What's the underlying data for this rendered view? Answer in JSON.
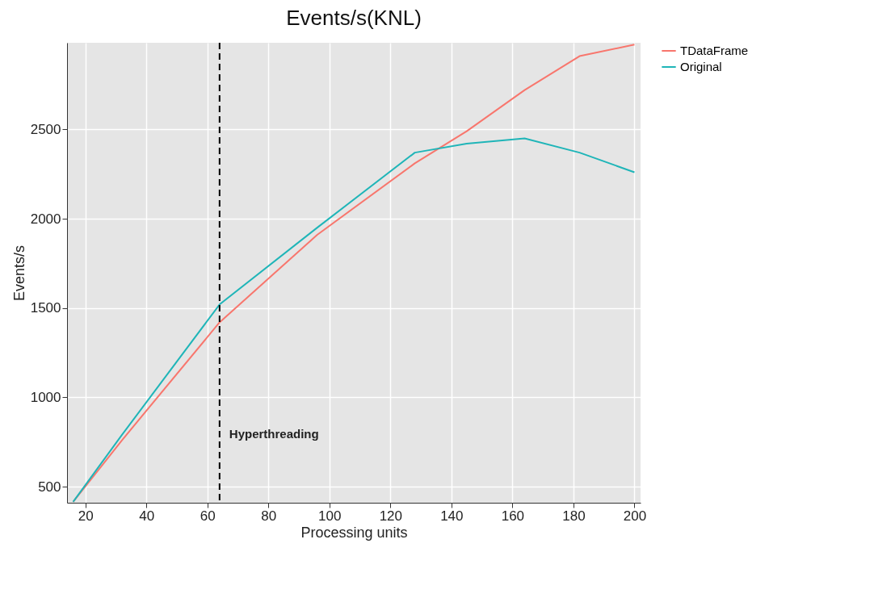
{
  "chart_data": {
    "type": "line",
    "title": "Events/s(KNL)",
    "xlabel": "Processing units",
    "ylabel": "Events/s",
    "x": [
      16,
      32,
      64,
      96,
      128,
      145,
      164,
      182,
      200
    ],
    "series": [
      {
        "name": "TDataFrame",
        "color": "#f8766d",
        "values": [
          415,
          760,
          1420,
          1910,
          2310,
          2490,
          2720,
          2910,
          2975
        ]
      },
      {
        "name": "Original",
        "color": "#1fb5b8",
        "values": [
          415,
          790,
          1520,
          1950,
          2370,
          2420,
          2450,
          2370,
          2260
        ]
      }
    ],
    "xlim": [
      14,
      202
    ],
    "ylim": [
      410,
      2985
    ],
    "xticks": [
      20,
      40,
      60,
      80,
      100,
      120,
      140,
      160,
      180,
      200
    ],
    "yticks": [
      500,
      1000,
      1500,
      2000,
      2500
    ],
    "ref_lines": [
      {
        "axis": "x",
        "value": 64,
        "label": "Hyperthreading",
        "color": "#000000",
        "line_style": "dashed"
      }
    ],
    "grid": true,
    "legend": "right",
    "marker": "none",
    "line_style": "solid"
  }
}
